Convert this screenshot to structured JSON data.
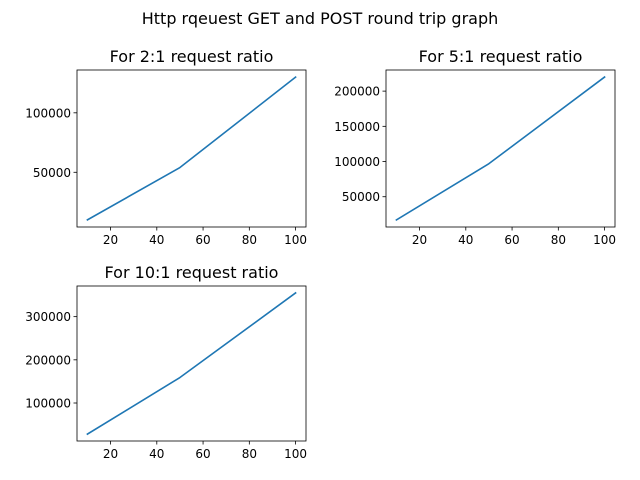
{
  "figure": {
    "suptitle": "Http rqeuest GET and POST round trip graph"
  },
  "chart_data": [
    {
      "type": "line",
      "title": "For 2:1 request ratio",
      "xlabel": "",
      "ylabel": "",
      "x": [
        10,
        50,
        100
      ],
      "series": [
        {
          "values": [
            10000,
            54000,
            130000
          ]
        }
      ],
      "xlim": [
        5.5,
        104.5
      ],
      "ylim": [
        4000,
        136000
      ],
      "xticks": [
        20,
        40,
        60,
        80,
        100
      ],
      "xtick_labels": [
        "20",
        "40",
        "60",
        "80",
        "100"
      ],
      "yticks": [
        50000,
        100000
      ],
      "ytick_labels": [
        "50000",
        "100000"
      ],
      "grid": false,
      "line_color": "#1f77b4"
    },
    {
      "type": "line",
      "title": "For 5:1 request ratio",
      "xlabel": "",
      "ylabel": "",
      "x": [
        10,
        50,
        100
      ],
      "series": [
        {
          "values": [
            17000,
            97000,
            220000
          ]
        }
      ],
      "xlim": [
        5.5,
        104.5
      ],
      "ylim": [
        7000,
        230000
      ],
      "xticks": [
        20,
        40,
        60,
        80,
        100
      ],
      "xtick_labels": [
        "20",
        "40",
        "60",
        "80",
        "100"
      ],
      "yticks": [
        50000,
        100000,
        150000,
        200000
      ],
      "ytick_labels": [
        "50000",
        "100000",
        "150000",
        "200000"
      ],
      "grid": false,
      "line_color": "#1f77b4"
    },
    {
      "type": "line",
      "title": "For 10:1 request ratio",
      "xlabel": "",
      "ylabel": "",
      "x": [
        10,
        50,
        100
      ],
      "series": [
        {
          "values": [
            28000,
            159000,
            355000
          ]
        }
      ],
      "xlim": [
        5.5,
        104.5
      ],
      "ylim": [
        12000,
        371000
      ],
      "xticks": [
        20,
        40,
        60,
        80,
        100
      ],
      "xtick_labels": [
        "20",
        "40",
        "60",
        "80",
        "100"
      ],
      "yticks": [
        100000,
        200000,
        300000
      ],
      "ytick_labels": [
        "100000",
        "200000",
        "300000"
      ],
      "grid": false,
      "line_color": "#1f77b4"
    }
  ]
}
